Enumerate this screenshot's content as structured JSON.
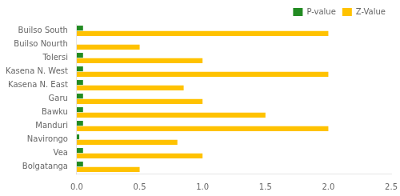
{
  "chart_data": {
    "type": "bar",
    "orientation": "horizontal",
    "categories": [
      "Builso South",
      "Builso Nourth",
      "Tolersi",
      "Kasena N. West",
      "Kasena N. East",
      "Garu",
      "Bawku",
      "Manduri",
      "Navirongo",
      "Vea",
      "Bolgatanga"
    ],
    "series": [
      {
        "name": "P-value",
        "color": "#228B22",
        "values": [
          0.05,
          0.0,
          0.05,
          0.05,
          0.05,
          0.05,
          0.05,
          0.05,
          0.02,
          0.05,
          0.05
        ]
      },
      {
        "name": "Z-Value",
        "color": "#FFC200",
        "values": [
          2.0,
          0.5,
          1.0,
          2.0,
          0.85,
          1.0,
          1.5,
          2.0,
          0.8,
          1.0,
          0.5
        ]
      }
    ],
    "xlim": [
      0,
      2.5
    ],
    "xticks": [
      {
        "value": 0,
        "label": "0.0"
      },
      0.5,
      {
        "value": 1.0,
        "label": "1.0"
      },
      1.5,
      {
        "value": 2.0,
        "label": "2.0"
      },
      2.5
    ],
    "grid": false,
    "legend": "upper right"
  }
}
